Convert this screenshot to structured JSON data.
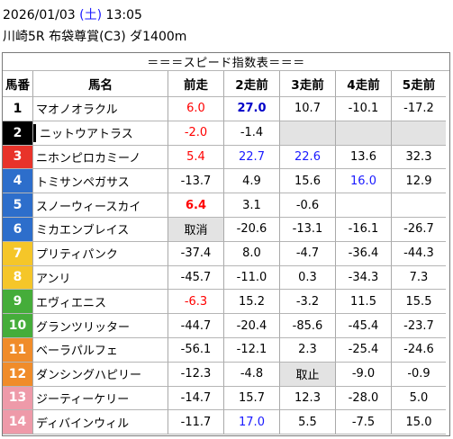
{
  "header": {
    "date": "2026/01/03",
    "weekday_open": "(",
    "weekday": "土",
    "weekday_close": ")",
    "time": "13:05",
    "race": "川崎5R 布袋尊賞(C3) ダ1400m"
  },
  "table": {
    "title": "＝＝＝スピード指数表＝＝＝",
    "columns": [
      "馬番",
      "馬名",
      "前走",
      "2走前",
      "3走前",
      "4走前",
      "5走前"
    ],
    "rows": [
      {
        "num": "1",
        "bg": "#ffffff",
        "fg": "#000000",
        "name": "マオノオラクル",
        "vals": [
          "6.0",
          "27.0",
          "10.7",
          "-10.1",
          "-17.2"
        ],
        "styles": [
          "red",
          "navy bold",
          "",
          "",
          ""
        ]
      },
      {
        "num": "2",
        "bg": "#000000",
        "fg": "#ffffff",
        "name": "ニットウアトラス",
        "name_mark": true,
        "vals": [
          "-2.0",
          "-1.4",
          "",
          "",
          ""
        ],
        "styles": [
          "red",
          "",
          "gray",
          "gray",
          "gray"
        ]
      },
      {
        "num": "3",
        "bg": "#e8332a",
        "fg": "#ffffff",
        "name": "ニホンピロカミーノ",
        "vals": [
          "5.4",
          "22.7",
          "22.6",
          "13.6",
          "32.3"
        ],
        "styles": [
          "red",
          "blue",
          "blue",
          "",
          ""
        ]
      },
      {
        "num": "4",
        "bg": "#2d6ecb",
        "fg": "#ffffff",
        "name": "トミサンペガサス",
        "vals": [
          "-13.7",
          "4.9",
          "15.6",
          "16.0",
          "12.9"
        ],
        "styles": [
          "",
          "",
          "",
          "blue",
          ""
        ]
      },
      {
        "num": "5",
        "bg": "#2d6ecb",
        "fg": "#ffffff",
        "name": "スノーウィースカイ",
        "vals": [
          "6.4",
          "3.1",
          "-0.6",
          "",
          ""
        ],
        "styles": [
          "red bold",
          "",
          "",
          "",
          ""
        ]
      },
      {
        "num": "6",
        "bg": "#2d6ecb",
        "fg": "#ffffff",
        "name": "ミカエンブレイス",
        "vals": [
          "取消",
          "-20.6",
          "-13.1",
          "-16.1",
          "-26.7"
        ],
        "styles": [
          "gray",
          "",
          "",
          "",
          ""
        ]
      },
      {
        "num": "7",
        "bg": "#f5c629",
        "fg": "#ffffff",
        "name": "プリティパンク",
        "vals": [
          "-37.4",
          "8.0",
          "-4.7",
          "-36.4",
          "-44.3"
        ],
        "styles": [
          "",
          "",
          "",
          "",
          ""
        ]
      },
      {
        "num": "8",
        "bg": "#f5c629",
        "fg": "#ffffff",
        "name": "アンリ",
        "vals": [
          "-45.7",
          "-11.0",
          "0.3",
          "-34.3",
          "7.3"
        ],
        "styles": [
          "",
          "",
          "",
          "",
          ""
        ]
      },
      {
        "num": "9",
        "bg": "#45ad3a",
        "fg": "#ffffff",
        "name": "エヴィエニス",
        "vals": [
          "-6.3",
          "15.2",
          "-3.2",
          "11.5",
          "15.5"
        ],
        "styles": [
          "red",
          "",
          "",
          "",
          ""
        ]
      },
      {
        "num": "10",
        "bg": "#45ad3a",
        "fg": "#ffffff",
        "name": "グランツリッター",
        "vals": [
          "-44.7",
          "-20.4",
          "-85.6",
          "-45.4",
          "-23.7"
        ],
        "styles": [
          "",
          "",
          "",
          "",
          ""
        ]
      },
      {
        "num": "11",
        "bg": "#f08c2a",
        "fg": "#ffffff",
        "name": "ベーラパルフェ",
        "vals": [
          "-56.1",
          "-12.1",
          "2.3",
          "-25.4",
          "-24.6"
        ],
        "styles": [
          "",
          "",
          "",
          "",
          ""
        ]
      },
      {
        "num": "12",
        "bg": "#f08c2a",
        "fg": "#ffffff",
        "name": "ダンシングハピリー",
        "vals": [
          "-12.3",
          "-4.8",
          "取止",
          "-9.0",
          "-0.9"
        ],
        "styles": [
          "",
          "",
          "gray",
          "",
          ""
        ]
      },
      {
        "num": "13",
        "bg": "#ee9aa9",
        "fg": "#ffffff",
        "name": "ジーティーケリー",
        "vals": [
          "-14.7",
          "15.7",
          "12.3",
          "-28.0",
          "5.0"
        ],
        "styles": [
          "",
          "",
          "",
          "",
          ""
        ]
      },
      {
        "num": "14",
        "bg": "#ee9aa9",
        "fg": "#ffffff",
        "name": "ディバインウィル",
        "vals": [
          "-11.7",
          "17.0",
          "5.5",
          "-7.5",
          "15.0"
        ],
        "styles": [
          "",
          "blue",
          "",
          "",
          ""
        ]
      }
    ]
  }
}
